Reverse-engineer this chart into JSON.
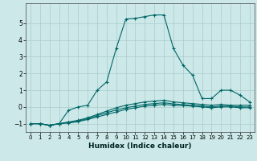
{
  "xlabel": "Humidex (Indice chaleur)",
  "bg_color": "#cce8e8",
  "grid_color": "#aacccc",
  "line_color": "#006666",
  "xlim": [
    -0.5,
    23.5
  ],
  "ylim": [
    -1.5,
    6.2
  ],
  "yticks": [
    -1,
    0,
    1,
    2,
    3,
    4,
    5
  ],
  "xticks": [
    0,
    1,
    2,
    3,
    4,
    5,
    6,
    7,
    8,
    9,
    10,
    11,
    12,
    13,
    14,
    15,
    16,
    17,
    18,
    19,
    20,
    21,
    22,
    23
  ],
  "line1_x": [
    0,
    1,
    2,
    3,
    4,
    5,
    6,
    7,
    8,
    9,
    10,
    11,
    12,
    13,
    14,
    15,
    16,
    17,
    18,
    19,
    20,
    21,
    22,
    23
  ],
  "line1_y": [
    -1,
    -1,
    -1.1,
    -1,
    -0.2,
    0.0,
    0.1,
    1.0,
    1.5,
    3.5,
    5.25,
    5.3,
    5.4,
    5.5,
    5.5,
    3.5,
    2.5,
    1.9,
    0.5,
    0.5,
    1.0,
    1.0,
    0.7,
    0.3
  ],
  "line2_x": [
    0,
    1,
    2,
    3,
    4,
    5,
    6,
    7,
    8,
    9,
    10,
    11,
    12,
    13,
    14,
    15,
    16,
    17,
    18,
    19,
    20,
    21,
    22,
    23
  ],
  "line2_y": [
    -1,
    -1,
    -1.1,
    -1,
    -0.9,
    -0.8,
    -0.65,
    -0.45,
    -0.25,
    -0.05,
    0.1,
    0.2,
    0.3,
    0.35,
    0.4,
    0.3,
    0.25,
    0.2,
    0.15,
    0.1,
    0.15,
    0.1,
    0.1,
    0.1
  ],
  "line3_x": [
    0,
    1,
    2,
    3,
    4,
    5,
    6,
    7,
    8,
    9,
    10,
    11,
    12,
    13,
    14,
    15,
    16,
    17,
    18,
    19,
    20,
    21,
    22,
    23
  ],
  "line3_y": [
    -1,
    -1,
    -1.1,
    -1,
    -0.96,
    -0.88,
    -0.75,
    -0.6,
    -0.45,
    -0.3,
    -0.15,
    -0.05,
    0.05,
    0.1,
    0.15,
    0.1,
    0.08,
    0.05,
    0.0,
    -0.05,
    0.0,
    0.0,
    -0.05,
    -0.05
  ],
  "line4_x": [
    0,
    1,
    2,
    3,
    4,
    5,
    6,
    7,
    8,
    9,
    10,
    11,
    12,
    13,
    14,
    15,
    16,
    17,
    18,
    19,
    20,
    21,
    22,
    23
  ],
  "line4_y": [
    -1,
    -1,
    -1.1,
    -1,
    -0.93,
    -0.84,
    -0.7,
    -0.52,
    -0.35,
    -0.18,
    -0.05,
    0.05,
    0.15,
    0.2,
    0.25,
    0.18,
    0.14,
    0.1,
    0.05,
    0.0,
    0.05,
    0.05,
    0.0,
    0.0
  ]
}
